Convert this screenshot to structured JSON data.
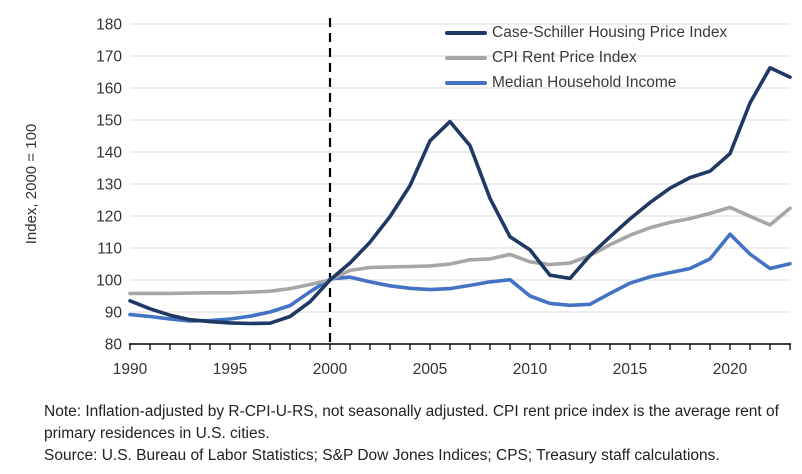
{
  "chart_data": {
    "type": "line",
    "title": "",
    "xlabel": "",
    "ylabel": "Index, 2000 = 100",
    "ylim": [
      80,
      180
    ],
    "ytick_step": 10,
    "xlim": [
      1990,
      2023
    ],
    "xticks_labeled": [
      1990,
      1995,
      2000,
      2005,
      2010,
      2015,
      2020
    ],
    "grid": true,
    "legend_position": "top-right",
    "reference_line_x": 2000,
    "x": [
      1990,
      1991,
      1992,
      1993,
      1994,
      1995,
      1996,
      1997,
      1998,
      1999,
      2000,
      2001,
      2002,
      2003,
      2004,
      2005,
      2006,
      2007,
      2008,
      2009,
      2010,
      2011,
      2012,
      2013,
      2014,
      2015,
      2016,
      2017,
      2018,
      2019,
      2020,
      2021,
      2022,
      2023
    ],
    "series": [
      {
        "name": "Case-Schiller Housing Price Index",
        "color": "#1F3864",
        "values": [
          93.5,
          91.0,
          89.0,
          87.6,
          87.0,
          86.6,
          86.4,
          86.5,
          88.6,
          93.2,
          100.0,
          105.3,
          111.8,
          119.8,
          129.5,
          143.5,
          149.5,
          142.0,
          125.5,
          113.5,
          109.4,
          101.5,
          100.5,
          107.7,
          113.5,
          119.1,
          124.2,
          128.7,
          132.0,
          134.0,
          139.5,
          155.3,
          166.3,
          163.4
        ]
      },
      {
        "name": "CPI Rent Price Index",
        "color": "#A6A6A6",
        "values": [
          95.8,
          95.8,
          95.8,
          95.9,
          96.0,
          96.0,
          96.2,
          96.5,
          97.3,
          98.6,
          100.0,
          103.0,
          103.9,
          104.1,
          104.2,
          104.4,
          105.0,
          106.3,
          106.6,
          108.0,
          105.7,
          104.8,
          105.3,
          107.6,
          111.0,
          114.0,
          116.3,
          118.0,
          119.2,
          120.8,
          122.7,
          119.9,
          117.2,
          122.4
        ]
      },
      {
        "name": "Median Household Income",
        "color": "#4472C4",
        "values": [
          89.2,
          88.6,
          87.8,
          87.2,
          87.3,
          87.8,
          88.7,
          90.0,
          92.0,
          96.3,
          100.3,
          100.9,
          99.4,
          98.2,
          97.4,
          97.0,
          97.3,
          98.3,
          99.4,
          100.1,
          95.0,
          92.7,
          92.1,
          92.4,
          95.8,
          99.0,
          101.0,
          102.3,
          103.6,
          106.6,
          114.3,
          108.1,
          103.6,
          105.1
        ]
      }
    ]
  },
  "notes": {
    "note": "Note: Inflation-adjusted by R-CPI-U-RS, not seasonally adjusted. CPI rent price index is the average rent of primary residences in U.S. cities.",
    "source": "Source: U.S. Bureau of Labor Statistics; S&P Dow Jones Indices; CPS; Treasury staff calculations."
  }
}
